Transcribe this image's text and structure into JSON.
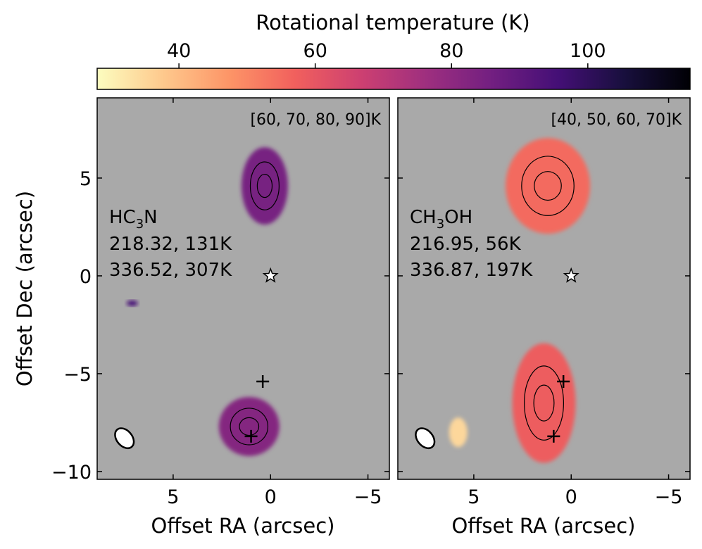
{
  "colors": {
    "background": "#a9a9a9",
    "contour": "#000000",
    "colormap": [
      "#fcfdbf",
      "#fec98d",
      "#fd9567",
      "#f1605d",
      "#cd4071",
      "#9e2f7f",
      "#721f81",
      "#440f76",
      "#180f3d",
      "#000004"
    ]
  },
  "colorbar": {
    "label": "Rotational temperature (K)",
    "ticks": [
      "40",
      "60",
      "80",
      "100"
    ],
    "tick_values": [
      40,
      60,
      80,
      100
    ],
    "range": [
      28,
      115
    ]
  },
  "chart_data": [
    {
      "type": "heatmap",
      "panel": "left",
      "molecule_main": "HC",
      "molecule_sub": "3",
      "molecule_end": "N",
      "line1": "218.32, 131K",
      "line2": "336.52, 307K",
      "contour_levels": "[60, 70, 80, 90]K",
      "xlabel": "Offset RA (arcsec)",
      "ylabel": "Offset Dec (arcsec)",
      "xlim": [
        8.9,
        -6.1
      ],
      "ylim": [
        -10.4,
        9.1
      ],
      "xticks": [
        "5",
        "0",
        "−5"
      ],
      "xtick_values": [
        5,
        0,
        -5
      ],
      "yticks": [
        "5",
        "0",
        "−5",
        "−10"
      ],
      "ytick_values": [
        5,
        0,
        -5,
        -10
      ],
      "star_position": [
        0,
        0
      ],
      "cross_positions": [
        [
          0.4,
          -5.4
        ],
        [
          1.0,
          -8.2
        ]
      ],
      "beam_center": [
        7.5,
        -8.3
      ],
      "regions": [
        {
          "name": "north",
          "center": [
            0.3,
            4.6
          ],
          "mean_temperature_K": 85
        },
        {
          "name": "south",
          "center": [
            1.1,
            -7.7
          ],
          "mean_temperature_K": 82
        },
        {
          "name": "small",
          "center": [
            7.1,
            -1.4
          ],
          "mean_temperature_K": 95
        }
      ]
    },
    {
      "type": "heatmap",
      "panel": "right",
      "molecule_main": "CH",
      "molecule_sub": "3",
      "molecule_end": "OH",
      "line1": "216.95, 56K",
      "line2": "336.87, 197K",
      "contour_levels": "[40, 50, 60, 70]K",
      "xlabel": "Offset RA (arcsec)",
      "xlim": [
        8.9,
        -6.1
      ],
      "ylim": [
        -10.4,
        9.1
      ],
      "xticks": [
        "5",
        "0",
        "−5"
      ],
      "xtick_values": [
        5,
        0,
        -5
      ],
      "star_position": [
        0,
        0
      ],
      "cross_positions": [
        [
          0.4,
          -5.4
        ],
        [
          0.9,
          -8.2
        ]
      ],
      "beam_center": [
        7.5,
        -8.3
      ],
      "regions": [
        {
          "name": "north",
          "center": [
            1.2,
            4.6
          ],
          "mean_temperature_K": 55
        },
        {
          "name": "south",
          "center": [
            1.4,
            -6.5
          ],
          "mean_temperature_K": 58
        },
        {
          "name": "small",
          "center": [
            5.8,
            -8.0
          ],
          "mean_temperature_K": 35
        }
      ]
    }
  ]
}
